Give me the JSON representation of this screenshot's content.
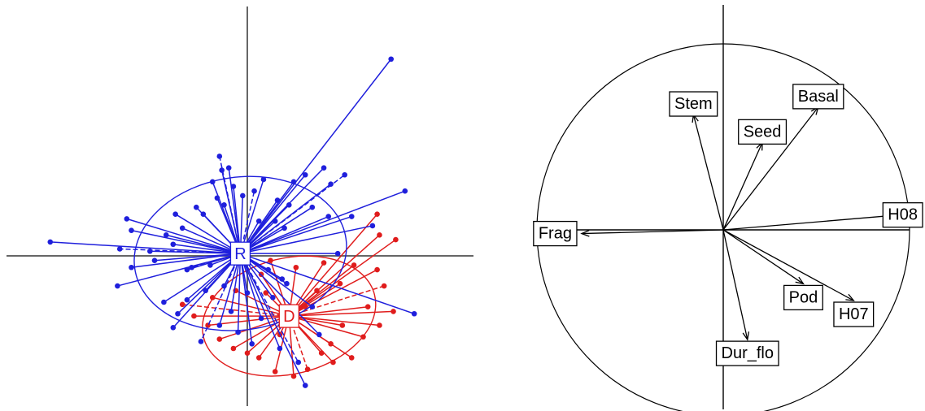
{
  "colors": {
    "group_r": "#1f1fdc",
    "group_d": "#e01c1c",
    "axis": "#666666",
    "ink": "#000000",
    "label_bg": "#ffffff"
  },
  "chart_data": [
    {
      "type": "scatter",
      "subtype": "class-scatter-star",
      "title": "",
      "xlim": [
        -10,
        10
      ],
      "ylim": [
        -7.2,
        10
      ],
      "grid": false,
      "legend": "none",
      "groups": [
        {
          "label": "R",
          "color": "#1f1fdc",
          "centroid": [
            -0.3,
            0.1
          ],
          "ellipse": {
            "rx": 4.6,
            "ry": 3.3,
            "angle": -8
          },
          "points": [
            [
              6.2,
              8.5
            ],
            [
              -8.5,
              0.6
            ],
            [
              -5.2,
              1.6
            ],
            [
              -5.0,
              1.1
            ],
            [
              -5.5,
              0.3
            ],
            [
              -5.0,
              -0.5
            ],
            [
              -5.6,
              -1.3
            ],
            [
              -4.2,
              0.2
            ],
            [
              -4.0,
              -0.2
            ],
            [
              -3.5,
              0.9
            ],
            [
              -3.1,
              1.8
            ],
            [
              -2.8,
              1.2
            ],
            [
              -3.2,
              0.5
            ],
            [
              -2.4,
              -0.5
            ],
            [
              -1.9,
              1.8
            ],
            [
              -1.3,
              2.5
            ],
            [
              -2.2,
              2.1
            ],
            [
              -1.1,
              3.7
            ],
            [
              -1.5,
              3.2
            ],
            [
              -1.0,
              2.2
            ],
            [
              -0.6,
              3.0
            ],
            [
              -0.2,
              2.6
            ],
            [
              0.3,
              2.8
            ],
            [
              0.7,
              3.3
            ],
            [
              0.5,
              1.5
            ],
            [
              1.2,
              1.5
            ],
            [
              1.3,
              2.4
            ],
            [
              1.8,
              2.2
            ],
            [
              2.0,
              3.2
            ],
            [
              2.5,
              3.5
            ],
            [
              3.3,
              3.8
            ],
            [
              4.2,
              3.5
            ],
            [
              3.6,
              3.1
            ],
            [
              2.8,
              2.1
            ],
            [
              3.5,
              1.7
            ],
            [
              1.6,
              1.2
            ],
            [
              6.8,
              2.8
            ],
            [
              5.4,
              1.3
            ],
            [
              4.5,
              1.7
            ],
            [
              3.9,
              0.1
            ],
            [
              -1.2,
              4.3
            ],
            [
              -0.8,
              3.8
            ],
            [
              -1.6,
              -0.4
            ],
            [
              -1.0,
              -1.3
            ],
            [
              -1.8,
              -1.5
            ],
            [
              -2.6,
              -1.9
            ],
            [
              -3.0,
              -2.5
            ],
            [
              -3.6,
              -2.0
            ],
            [
              -3.2,
              -3.1
            ],
            [
              -2.0,
              -3.7
            ],
            [
              -1.2,
              -3.0
            ],
            [
              -0.7,
              -2.4
            ],
            [
              0.0,
              -1.6
            ],
            [
              0.2,
              -3.8
            ],
            [
              0.6,
              -2.7
            ],
            [
              1.1,
              -1.8
            ],
            [
              1.7,
              -1.2
            ],
            [
              1.4,
              -4.0
            ],
            [
              2.2,
              -4.6
            ],
            [
              2.5,
              -5.6
            ],
            [
              3.1,
              -3.4
            ],
            [
              2.8,
              -2.2
            ],
            [
              7.2,
              -2.5
            ],
            [
              1.5,
              -1.0
            ],
            [
              0.9,
              -0.6
            ],
            [
              -0.4,
              -3.3
            ],
            [
              -2.6,
              -0.6
            ]
          ]
        },
        {
          "label": "D",
          "color": "#e01c1c",
          "centroid": [
            1.8,
            -2.6
          ],
          "ellipse": {
            "rx": 3.8,
            "ry": 2.5,
            "angle": -14
          },
          "points": [
            [
              5.7,
              0.9
            ],
            [
              5.6,
              1.8
            ],
            [
              6.4,
              0.7
            ],
            [
              5.6,
              -0.6
            ],
            [
              5.9,
              -1.3
            ],
            [
              5.2,
              -2.2
            ],
            [
              6.3,
              -2.4
            ],
            [
              5.7,
              -3.0
            ],
            [
              5.0,
              -3.5
            ],
            [
              4.1,
              -3.0
            ],
            [
              3.6,
              -3.8
            ],
            [
              4.5,
              -4.4
            ],
            [
              3.7,
              -4.6
            ],
            [
              2.6,
              -4.9
            ],
            [
              3.2,
              -4.2
            ],
            [
              2.0,
              -5.2
            ],
            [
              1.2,
              -5.0
            ],
            [
              0.5,
              -4.4
            ],
            [
              0.0,
              -4.2
            ],
            [
              -0.6,
              -4.0
            ],
            [
              -1.7,
              -3.0
            ],
            [
              -2.3,
              -2.6
            ],
            [
              -2.8,
              -2.1
            ],
            [
              -1.5,
              -1.8
            ],
            [
              -0.5,
              -1.5
            ],
            [
              0.6,
              -0.8
            ],
            [
              1.0,
              -0.2
            ],
            [
              2.1,
              -0.5
            ],
            [
              3.0,
              -1.5
            ],
            [
              4.0,
              -1.2
            ],
            [
              4.6,
              -0.4
            ],
            [
              2.5,
              -2.2
            ],
            [
              1.4,
              -3.4
            ],
            [
              -1.2,
              -3.6
            ],
            [
              0.8,
              -1.6
            ],
            [
              3.3,
              -0.3
            ]
          ]
        }
      ]
    },
    {
      "type": "scatter",
      "subtype": "correlation-circle",
      "title": "",
      "xlim": [
        -1,
        1
      ],
      "ylim": [
        -1,
        1
      ],
      "grid": false,
      "legend": "none",
      "variables": [
        {
          "label": "Basal",
          "x": 0.51,
          "y": 0.66
        },
        {
          "label": "Stem",
          "x": -0.16,
          "y": 0.62
        },
        {
          "label": "Seed",
          "x": 0.21,
          "y": 0.47
        },
        {
          "label": "H08",
          "x": 0.94,
          "y": 0.08
        },
        {
          "label": "Frag",
          "x": -0.76,
          "y": -0.02
        },
        {
          "label": "Pod",
          "x": 0.43,
          "y": -0.29
        },
        {
          "label": "H07",
          "x": 0.7,
          "y": -0.38
        },
        {
          "label": "Dur_flo",
          "x": 0.13,
          "y": -0.59
        }
      ]
    }
  ]
}
